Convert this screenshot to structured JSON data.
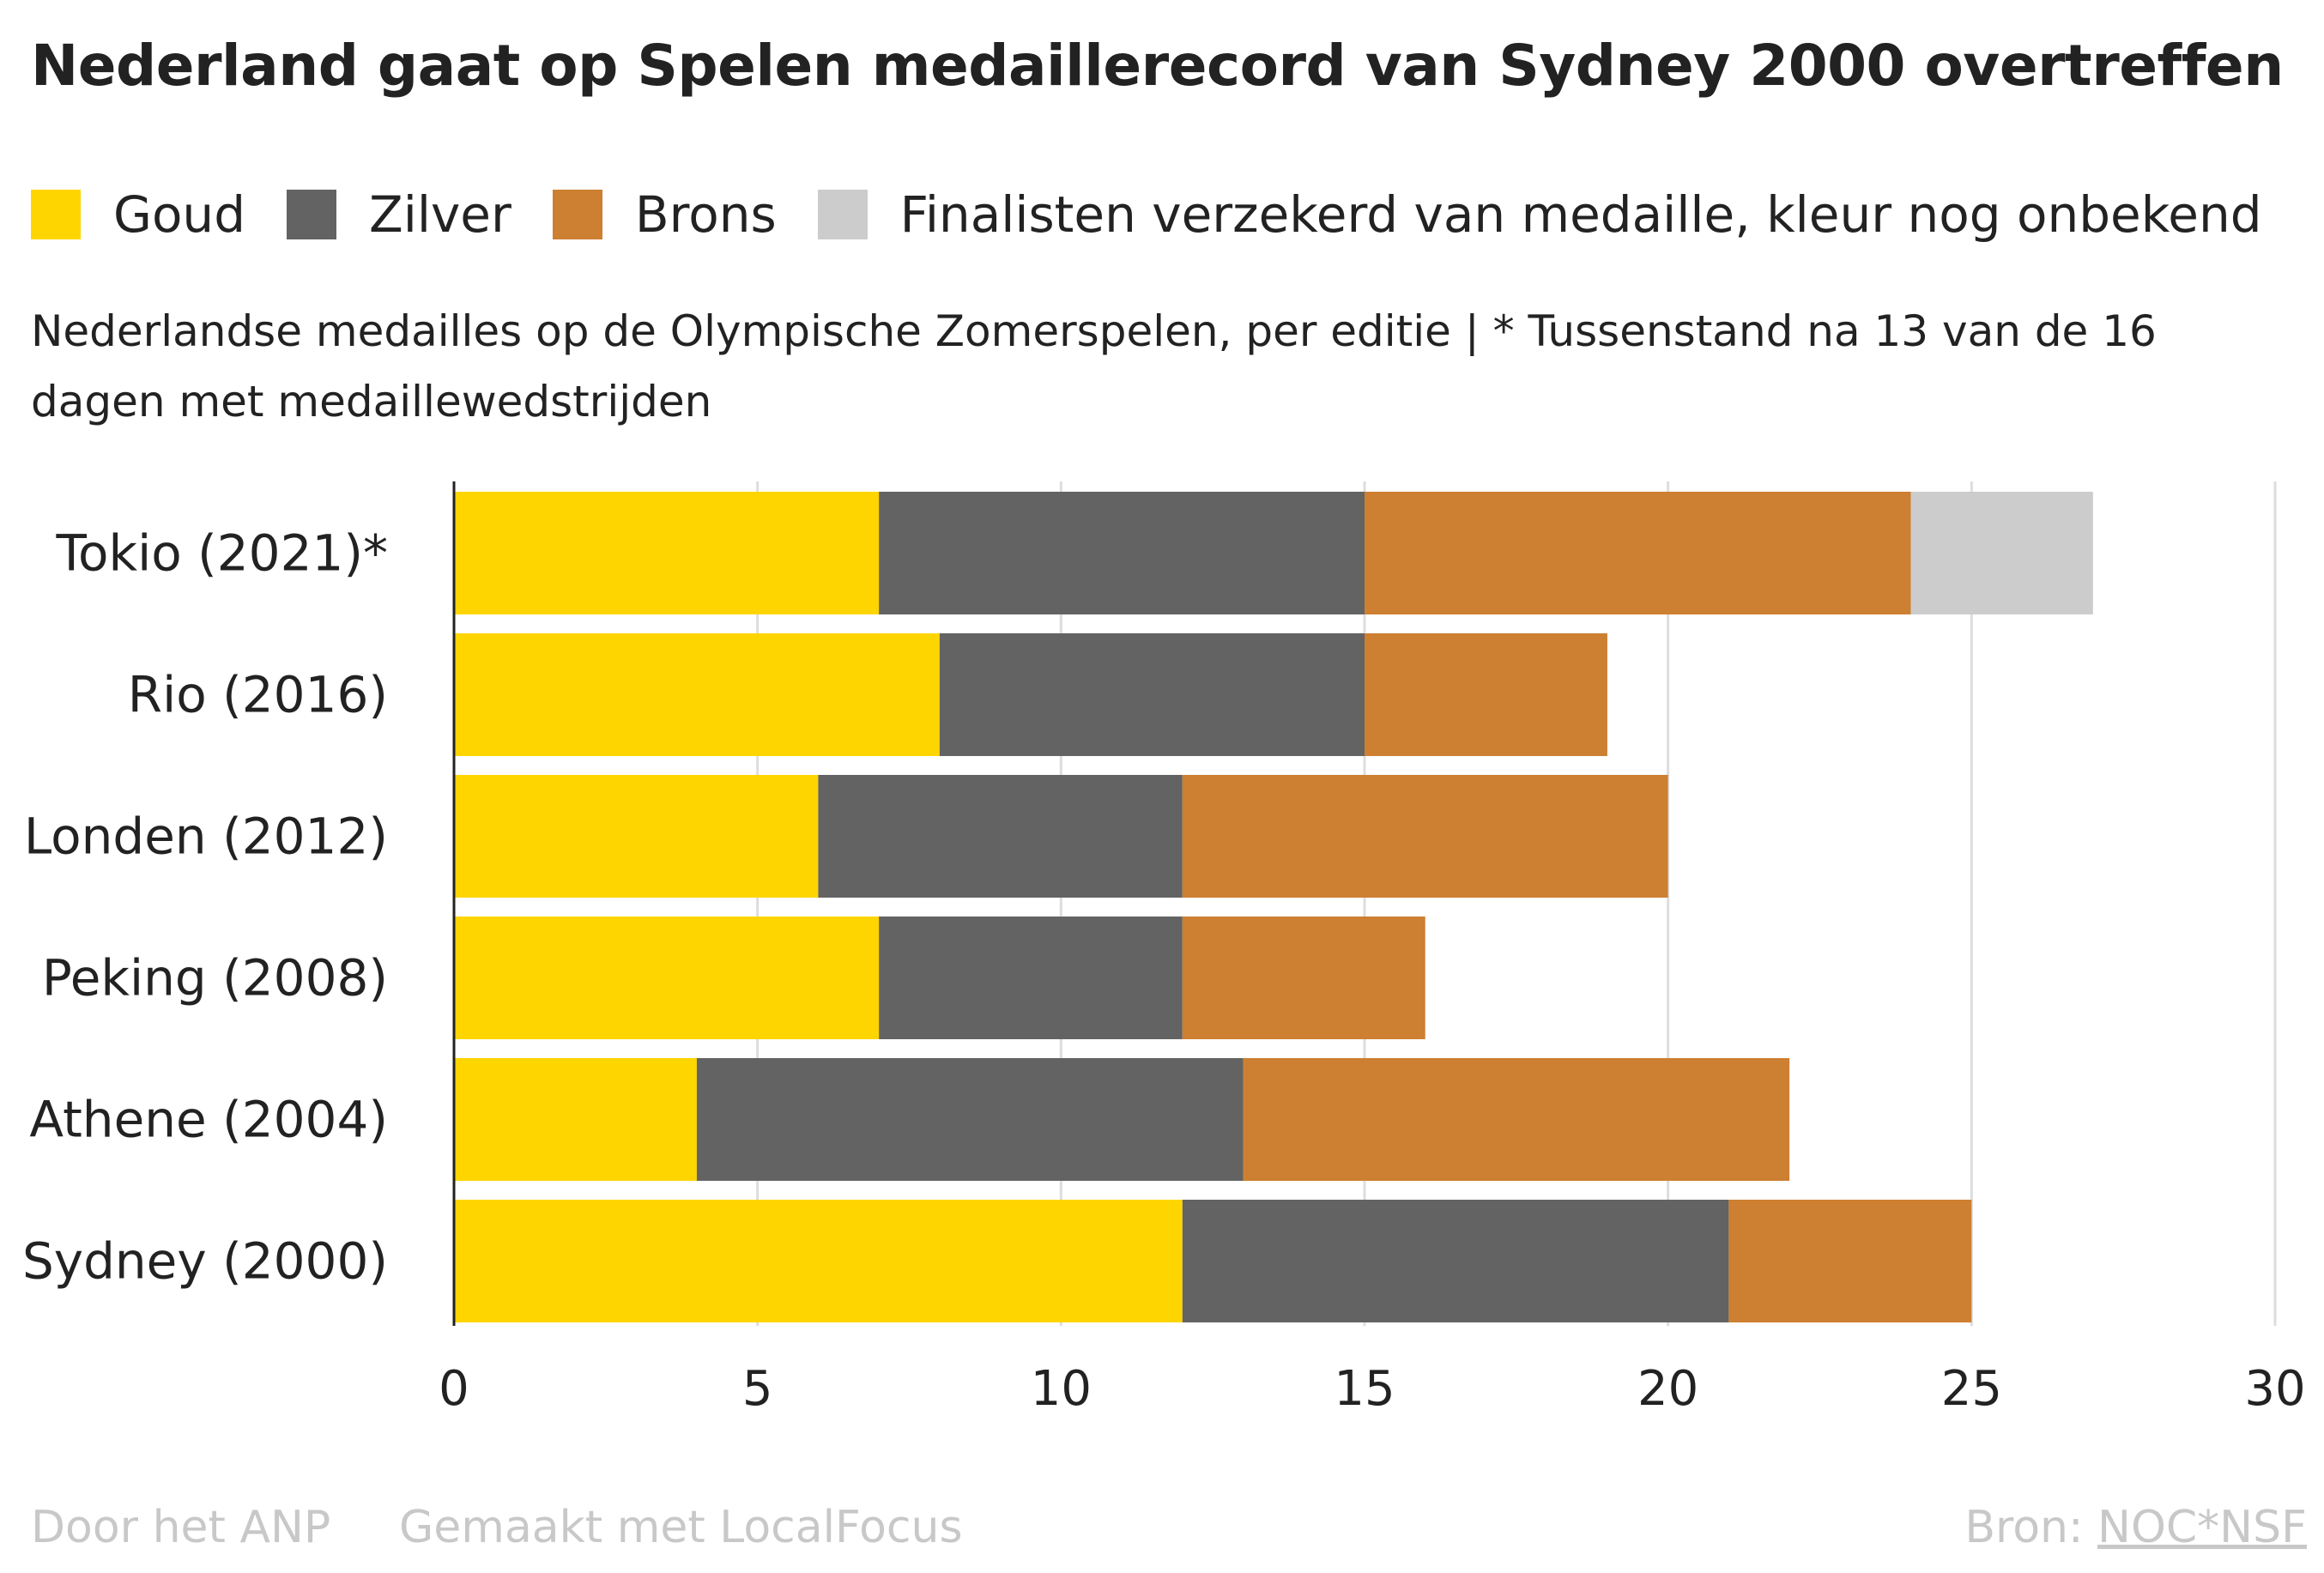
{
  "title": "Nederland gaat op Spelen medaillerecord van Sydney 2000 overtreffen",
  "subtitle": "Nederlandse medailles op de Olympische Zomerspelen, per editie | * Tussenstand na 13 van de 16 dagen met medaillewedstrijden",
  "footer": {
    "author": "Door het ANP",
    "made_with": "Gemaakt met LocalFocus",
    "source_label": "Bron:",
    "source": "NOC*NSF"
  },
  "chart_data": {
    "type": "bar",
    "orientation": "horizontal",
    "stacked": true,
    "categories": [
      "Tokio (2021)*",
      "Rio (2016)",
      "Londen (2012)",
      "Peking (2008)",
      "Athene (2004)",
      "Sydney (2000)"
    ],
    "series": [
      {
        "name": "Goud",
        "color": "#FFD500",
        "values": [
          7,
          8,
          6,
          7,
          4,
          12
        ]
      },
      {
        "name": "Zilver",
        "color": "#636363",
        "values": [
          8,
          7,
          6,
          5,
          9,
          9
        ]
      },
      {
        "name": "Brons",
        "color": "#CD7F32",
        "values": [
          9,
          4,
          8,
          4,
          9,
          4
        ]
      },
      {
        "name": "Finalisten verzekerd van medaille, kleur nog onbekend",
        "color": "#CCCCCC",
        "values": [
          3,
          0,
          0,
          0,
          0,
          0
        ]
      }
    ],
    "xlim": [
      0,
      30
    ],
    "xticks": [
      0,
      5,
      10,
      15,
      20,
      25,
      30
    ],
    "grid": true,
    "legend": "top"
  }
}
